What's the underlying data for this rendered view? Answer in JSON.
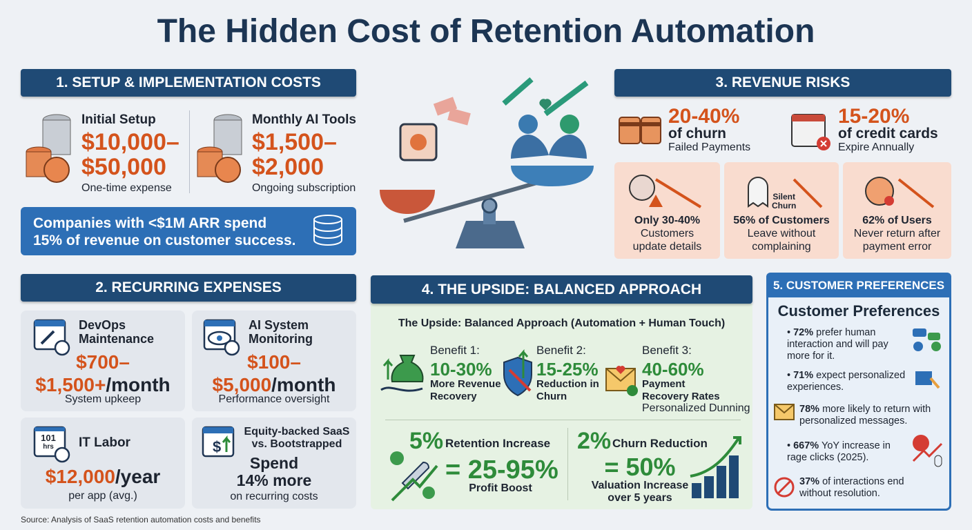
{
  "header": {
    "title": "The Hidden Cost of Retention Automation"
  },
  "section1": {
    "heading": "1. SETUP & IMPLEMENTATION COSTS",
    "items": [
      {
        "label": "Initial Setup",
        "amount": [
          "$10,000–",
          "$50,000"
        ],
        "note": "One-time expense"
      },
      {
        "label": "Monthly AI Tools",
        "amount": [
          "$1,500–",
          "$2,000"
        ],
        "note": "Ongoing subscription"
      }
    ],
    "callout": [
      "Companies with <$1M ARR spend",
      "15% of revenue on customer success."
    ]
  },
  "section2": {
    "heading": "2. RECURRING EXPENSES",
    "cards": [
      {
        "label": [
          "DevOps",
          "Maintenance"
        ],
        "amount": [
          "$700–",
          "$1,500+"
        ],
        "unit": "/month",
        "note": "System upkeep"
      },
      {
        "label": [
          "AI System",
          "Monitoring"
        ],
        "amount": [
          "$100–",
          "$5,000"
        ],
        "unit": "/month",
        "note": "Performance oversight"
      },
      {
        "icon_text": [
          "101",
          "hrs"
        ],
        "label": [
          "IT Labor"
        ],
        "amount": [
          "$12,000"
        ],
        "unit": "/year",
        "note": "per app (avg.)"
      },
      {
        "label": [
          "Equity-backed SaaS",
          "vs. Bootstrapped"
        ],
        "amount": [
          "Spend",
          "14% more"
        ],
        "note": "on recurring costs"
      }
    ]
  },
  "section3": {
    "heading": "3. REVENUE RISKS",
    "stats": [
      {
        "value": "20-40%",
        "label": "of churn",
        "note": "Failed Payments"
      },
      {
        "value": "15-20%",
        "label": "of credit cards",
        "note": "Expire Annually"
      }
    ],
    "cards": [
      {
        "highlight": "Only 30-40%",
        "text": [
          "Customers",
          "update details"
        ]
      },
      {
        "icon_label": [
          "Silent",
          "Churn"
        ],
        "highlight": "56% of Customers",
        "text": [
          "Leave without",
          "complaining"
        ]
      },
      {
        "highlight": "62% of Users",
        "text": [
          "Never return after",
          "payment error"
        ]
      }
    ]
  },
  "section4": {
    "heading": "4. THE UPSIDE: BALANCED APPROACH",
    "subtitle": "The Upside: Balanced Approach (Automation + Human Touch)",
    "benefits": [
      {
        "label": "Benefit 1:",
        "value": "10-30%",
        "text": [
          "More Revenue",
          "Recovery"
        ]
      },
      {
        "label": "Benefit 2:",
        "value": "15-25%",
        "text": [
          "Reduction in",
          "Churn"
        ]
      },
      {
        "label": "Benefit 3:",
        "value": "40-60%",
        "text": [
          "Payment",
          "Recovery Rates"
        ],
        "note": "Personalized Dunning"
      }
    ],
    "impacts": [
      {
        "value": "5%",
        "label": "Retention Increase",
        "result": "= 25-95%",
        "result_label": [
          "Profit Boost"
        ]
      },
      {
        "value": "2%",
        "label": "Churn Reduction",
        "result": "= 50%",
        "result_label": [
          "Valuation Increase",
          "over 5 years"
        ]
      }
    ]
  },
  "section5": {
    "heading": "5. CUSTOMER PREFERENCES",
    "title": "Customer Preferences",
    "items": [
      {
        "stat": "72%",
        "text": "prefer human interaction and will pay more for it."
      },
      {
        "stat": "71%",
        "text": "expect personalized experiences."
      },
      {
        "stat": "78%",
        "text": "more likely to return with personalized messages."
      },
      {
        "stat": "667%",
        "text": "YoY increase in rage clicks (2025)."
      },
      {
        "stat": "37%",
        "text": "of interactions end without resolution."
      }
    ]
  },
  "footer": {
    "source": "Source: Analysis of SaaS retention automation costs and benefits"
  }
}
